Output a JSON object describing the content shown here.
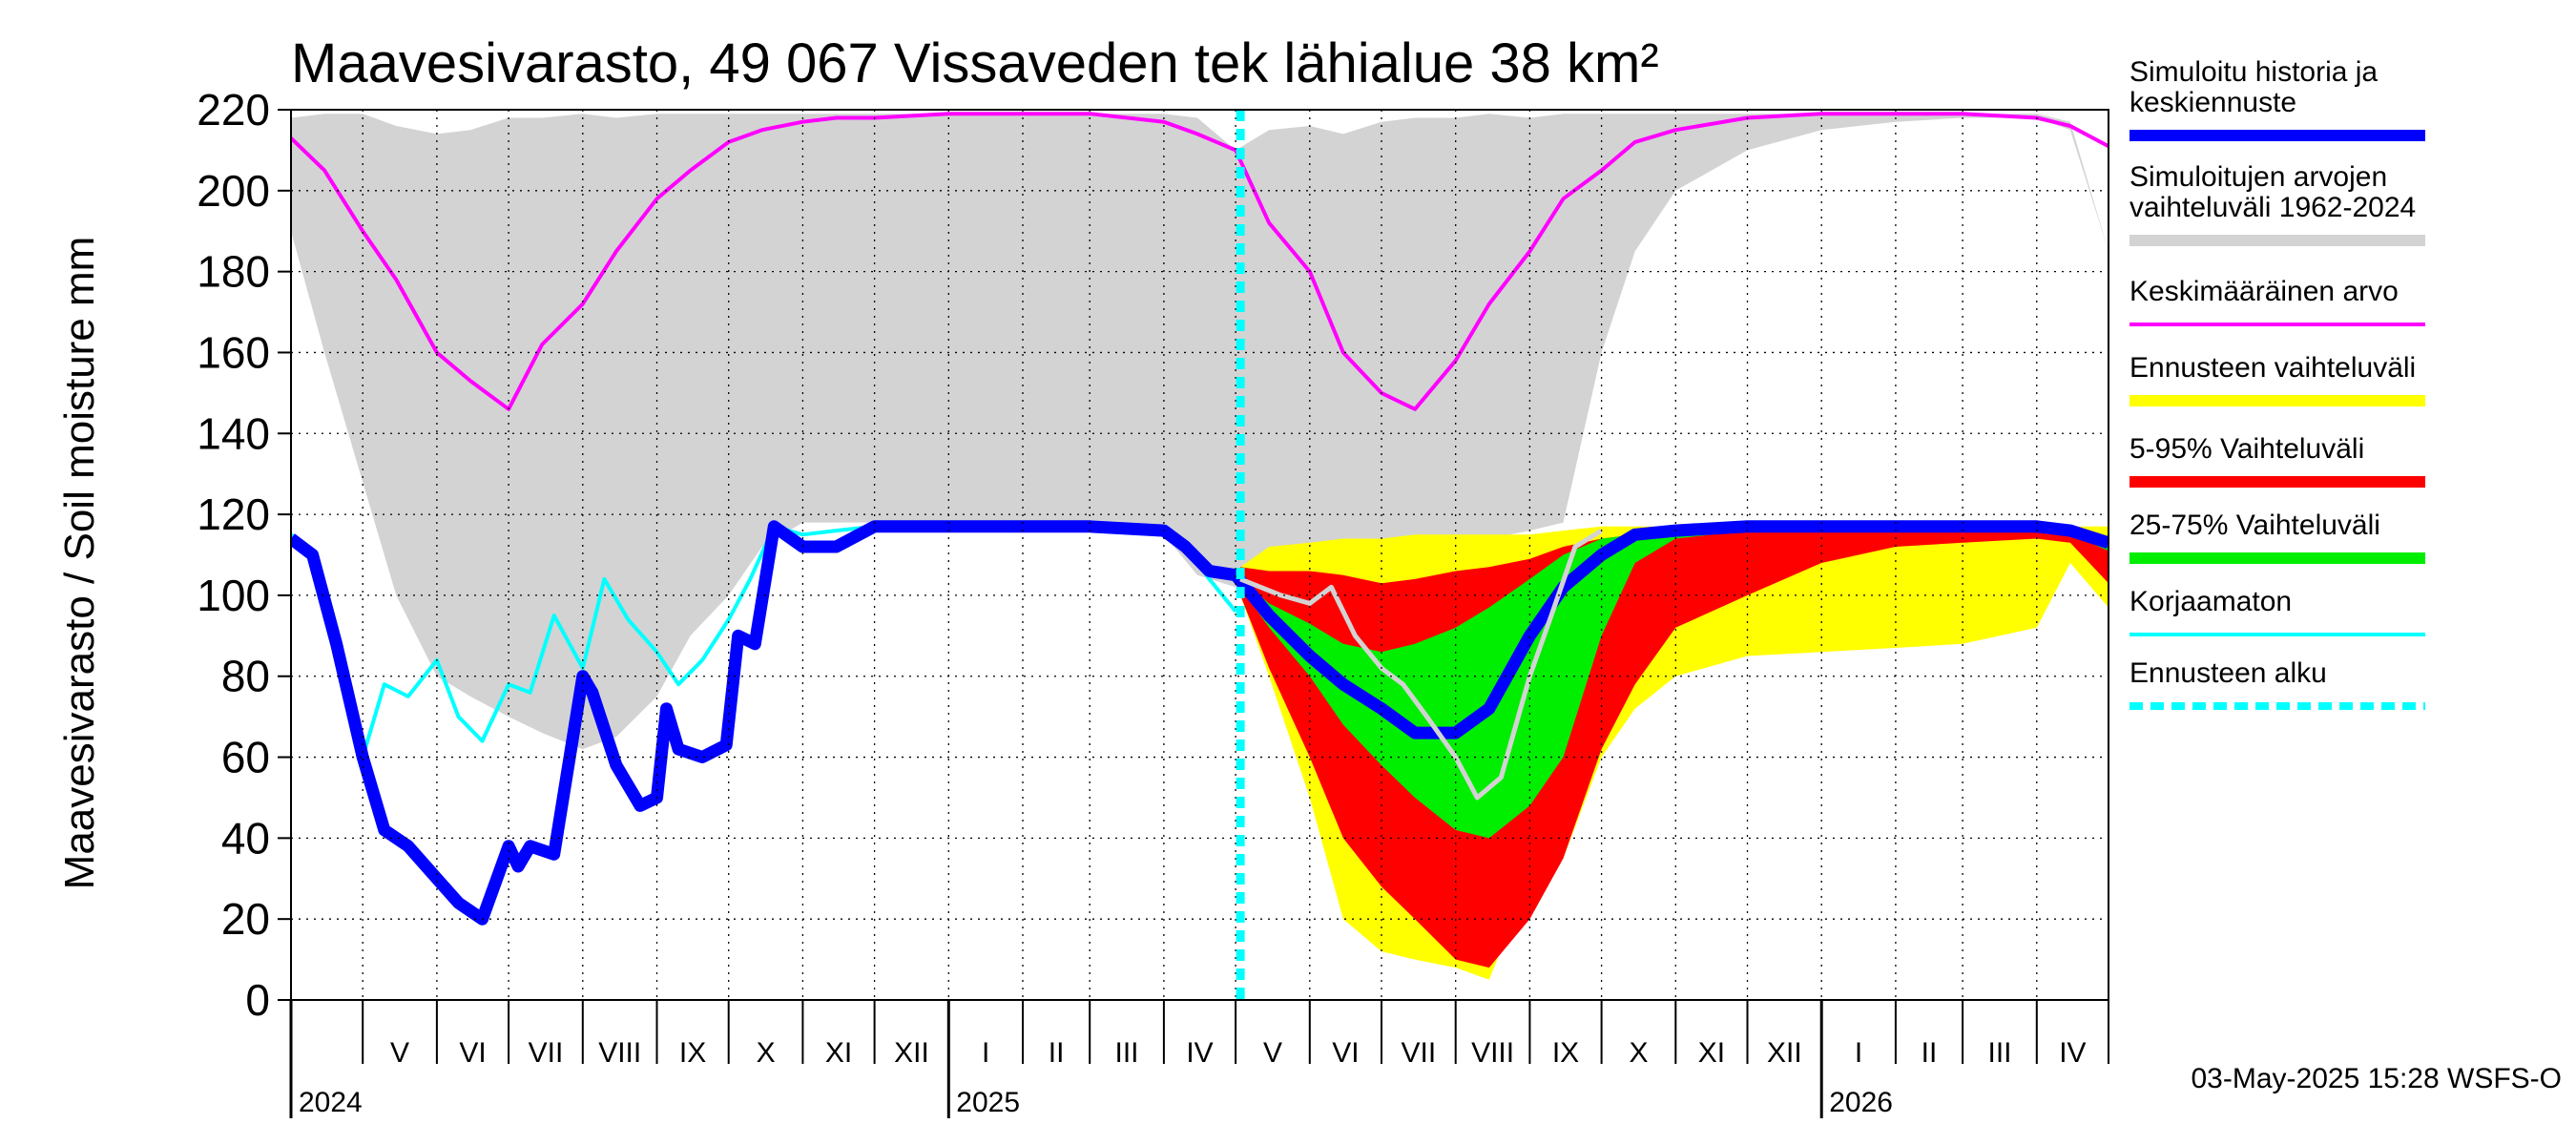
{
  "chart_data": {
    "type": "area",
    "title": "Maavesivarasto, 49 067 Vissaveden tek lähialue 38 km²",
    "ylabel": "Maavesivarasto / Soil moisture   mm",
    "ylim": [
      0,
      220
    ],
    "yticks": [
      "0",
      "20",
      "40",
      "60",
      "80",
      "100",
      "120",
      "140",
      "160",
      "180",
      "200",
      "220"
    ],
    "xlim": [
      "2024-04-01",
      "2026-05-01"
    ],
    "months": [
      {
        "label": "V",
        "date": "2024-05-01"
      },
      {
        "label": "VI",
        "date": "2024-06-01"
      },
      {
        "label": "VII",
        "date": "2024-07-01"
      },
      {
        "label": "VIII",
        "date": "2024-08-01"
      },
      {
        "label": "IX",
        "date": "2024-09-01"
      },
      {
        "label": "X",
        "date": "2024-10-01"
      },
      {
        "label": "XI",
        "date": "2024-11-01"
      },
      {
        "label": "XII",
        "date": "2024-12-01"
      },
      {
        "label": "I",
        "date": "2025-01-01"
      },
      {
        "label": "II",
        "date": "2025-02-01"
      },
      {
        "label": "III",
        "date": "2025-03-01"
      },
      {
        "label": "IV",
        "date": "2025-04-01"
      },
      {
        "label": "V",
        "date": "2025-05-01"
      },
      {
        "label": "VI",
        "date": "2025-06-01"
      },
      {
        "label": "VII",
        "date": "2025-07-01"
      },
      {
        "label": "VIII",
        "date": "2025-08-01"
      },
      {
        "label": "IX",
        "date": "2025-09-01"
      },
      {
        "label": "X",
        "date": "2025-10-01"
      },
      {
        "label": "XI",
        "date": "2025-11-01"
      },
      {
        "label": "XII",
        "date": "2025-12-01"
      },
      {
        "label": "I",
        "date": "2026-01-01"
      },
      {
        "label": "II",
        "date": "2026-02-01"
      },
      {
        "label": "III",
        "date": "2026-03-01"
      },
      {
        "label": "IV",
        "date": "2026-04-01"
      }
    ],
    "years": [
      {
        "label": "2024",
        "date": "2024-04-01"
      },
      {
        "label": "2025",
        "date": "2025-01-01"
      },
      {
        "label": "2026",
        "date": "2026-01-01"
      }
    ],
    "forecast_start": "2025-05-03",
    "series": [
      {
        "name": "Simuloitujen arvojen vaihteluväli 1962-2024",
        "color": "#d3d3d3",
        "style": "band",
        "x": [
          "2024-04-01",
          "2024-04-15",
          "2024-05-01",
          "2024-05-15",
          "2024-06-01",
          "2024-06-15",
          "2024-07-01",
          "2024-07-15",
          "2024-08-01",
          "2024-08-15",
          "2024-09-01",
          "2024-09-15",
          "2024-10-01",
          "2024-10-15",
          "2024-11-01",
          "2024-12-01",
          "2025-01-01",
          "2025-02-01",
          "2025-03-01",
          "2025-04-01",
          "2025-04-15",
          "2025-05-01",
          "2025-05-15",
          "2025-06-01",
          "2025-06-15",
          "2025-07-01",
          "2025-07-15",
          "2025-08-01",
          "2025-08-15",
          "2025-09-01",
          "2025-09-15",
          "2025-10-01",
          "2025-10-15",
          "2025-11-01",
          "2025-12-01",
          "2026-01-01",
          "2026-02-01",
          "2026-03-01",
          "2026-04-01",
          "2026-04-15",
          "2026-05-01"
        ],
        "upper": [
          218,
          219,
          219,
          216,
          214,
          215,
          218,
          218,
          219,
          218,
          219,
          219,
          219,
          219,
          219,
          219,
          219,
          219,
          219,
          219,
          218,
          210,
          215,
          216,
          214,
          217,
          218,
          218,
          219,
          218,
          219,
          219,
          219,
          219,
          219,
          219,
          219,
          219,
          219,
          217,
          185
        ],
        "lower": [
          190,
          160,
          128,
          100,
          80,
          75,
          70,
          66,
          62,
          65,
          75,
          90,
          100,
          112,
          118,
          118,
          118,
          118,
          118,
          115,
          105,
          102,
          105,
          112,
          113,
          113,
          114,
          114,
          114,
          116,
          118,
          160,
          185,
          200,
          210,
          215,
          217,
          218,
          218,
          215,
          185
        ]
      },
      {
        "name": "Ennusteen vaihteluväli",
        "color": "#ffff00",
        "style": "band",
        "x": [
          "2025-05-03",
          "2025-05-15",
          "2025-06-01",
          "2025-06-15",
          "2025-07-01",
          "2025-07-15",
          "2025-08-01",
          "2025-08-15",
          "2025-09-01",
          "2025-09-15",
          "2025-10-01",
          "2025-10-15",
          "2025-11-01",
          "2025-12-01",
          "2026-01-01",
          "2026-02-01",
          "2026-03-01",
          "2026-04-01",
          "2026-04-15",
          "2026-05-01"
        ],
        "upper": [
          107,
          112,
          113,
          114,
          114,
          115,
          115,
          115,
          115,
          116,
          117,
          117,
          117,
          117,
          117,
          117,
          117,
          117,
          117,
          117
        ],
        "lower": [
          100,
          80,
          50,
          20,
          12,
          10,
          8,
          5,
          30,
          35,
          60,
          72,
          80,
          85,
          86,
          87,
          88,
          92,
          108,
          97
        ]
      },
      {
        "name": "5-95% Vaihteluväli",
        "color": "#ff0000",
        "style": "band",
        "x": [
          "2025-05-03",
          "2025-05-15",
          "2025-06-01",
          "2025-06-15",
          "2025-07-01",
          "2025-07-15",
          "2025-08-01",
          "2025-08-15",
          "2025-09-01",
          "2025-09-15",
          "2025-10-01",
          "2025-10-15",
          "2025-11-01",
          "2025-12-01",
          "2026-01-01",
          "2026-02-01",
          "2026-03-01",
          "2026-04-01",
          "2026-04-15",
          "2026-05-01"
        ],
        "upper": [
          107,
          106,
          106,
          105,
          103,
          104,
          106,
          107,
          109,
          112,
          114,
          115,
          116,
          116,
          117,
          117,
          117,
          117,
          116,
          112
        ],
        "lower": [
          100,
          82,
          60,
          40,
          28,
          20,
          10,
          8,
          20,
          35,
          62,
          78,
          92,
          100,
          108,
          112,
          113,
          114,
          113,
          103
        ]
      },
      {
        "name": "25-75% Vaihteluväli",
        "color": "#00ee00",
        "style": "band",
        "x": [
          "2025-05-03",
          "2025-05-15",
          "2025-06-01",
          "2025-06-15",
          "2025-07-01",
          "2025-07-15",
          "2025-08-01",
          "2025-08-15",
          "2025-09-01",
          "2025-09-15",
          "2025-10-01",
          "2025-10-15",
          "2025-11-01",
          "2025-12-01",
          "2026-01-01",
          "2026-02-01",
          "2026-03-01",
          "2026-04-01",
          "2026-04-15",
          "2026-05-01"
        ],
        "upper": [
          104,
          98,
          93,
          88,
          86,
          88,
          92,
          97,
          104,
          110,
          114,
          115,
          116,
          117,
          117,
          117,
          117,
          117,
          116,
          114
        ],
        "lower": [
          102,
          92,
          80,
          68,
          58,
          50,
          42,
          40,
          48,
          60,
          90,
          108,
          114,
          116,
          116,
          116,
          116,
          116,
          115,
          111
        ]
      },
      {
        "name": "Korjaamaton",
        "color": "#00ffff",
        "style": "line",
        "x": [
          "2024-04-01",
          "2024-04-10",
          "2024-04-20",
          "2024-05-01",
          "2024-05-10",
          "2024-05-20",
          "2024-06-01",
          "2024-06-10",
          "2024-06-20",
          "2024-07-01",
          "2024-07-10",
          "2024-07-20",
          "2024-08-01",
          "2024-08-10",
          "2024-08-20",
          "2024-09-01",
          "2024-09-10",
          "2024-09-20",
          "2024-10-01",
          "2024-10-10",
          "2024-10-20",
          "2024-11-01",
          "2024-11-15",
          "2024-12-01",
          "2025-01-01",
          "2025-02-01",
          "2025-03-01",
          "2025-04-01",
          "2025-04-10",
          "2025-04-20",
          "2025-05-01"
        ],
        "y": [
          115,
          110,
          88,
          60,
          78,
          75,
          84,
          70,
          64,
          78,
          76,
          95,
          82,
          104,
          94,
          86,
          78,
          84,
          94,
          104,
          117,
          115,
          116,
          117,
          117,
          117,
          117,
          116,
          112,
          104,
          96
        ]
      },
      {
        "name": "Keskimääräinen arvo",
        "color": "#ff00ff",
        "style": "line",
        "x": [
          "2024-04-01",
          "2024-04-15",
          "2024-05-01",
          "2024-05-15",
          "2024-06-01",
          "2024-06-15",
          "2024-07-01",
          "2024-07-15",
          "2024-08-01",
          "2024-08-15",
          "2024-09-01",
          "2024-09-15",
          "2024-10-01",
          "2024-10-15",
          "2024-11-01",
          "2024-11-15",
          "2024-12-01",
          "2025-01-01",
          "2025-02-01",
          "2025-03-01",
          "2025-04-01",
          "2025-04-15",
          "2025-05-01",
          "2025-05-15",
          "2025-06-01",
          "2025-06-15",
          "2025-07-01",
          "2025-07-15",
          "2025-08-01",
          "2025-08-15",
          "2025-09-01",
          "2025-09-15",
          "2025-10-01",
          "2025-10-15",
          "2025-11-01",
          "2025-12-01",
          "2026-01-01",
          "2026-02-01",
          "2026-03-01",
          "2026-04-01",
          "2026-04-15",
          "2026-05-01"
        ],
        "y": [
          213,
          205,
          190,
          178,
          160,
          153,
          146,
          162,
          172,
          185,
          198,
          205,
          212,
          215,
          217,
          218,
          218,
          219,
          219,
          219,
          217,
          214,
          210,
          192,
          180,
          160,
          150,
          146,
          158,
          172,
          185,
          198,
          205,
          212,
          215,
          218,
          219,
          219,
          219,
          218,
          216,
          211
        ]
      },
      {
        "name": "Simuloitu historia ja keskiennuste",
        "color": "#0000ff",
        "style": "line-thick",
        "x": [
          "2024-04-01",
          "2024-04-10",
          "2024-04-20",
          "2024-05-01",
          "2024-05-10",
          "2024-05-20",
          "2024-06-01",
          "2024-06-10",
          "2024-06-20",
          "2024-07-01",
          "2024-07-05",
          "2024-07-10",
          "2024-07-20",
          "2024-08-01",
          "2024-08-05",
          "2024-08-15",
          "2024-08-25",
          "2024-09-01",
          "2024-09-05",
          "2024-09-10",
          "2024-09-20",
          "2024-09-30",
          "2024-10-05",
          "2024-10-12",
          "2024-10-20",
          "2024-11-01",
          "2024-11-15",
          "2024-12-01",
          "2025-01-01",
          "2025-02-01",
          "2025-03-01",
          "2025-04-01",
          "2025-04-10",
          "2025-04-20",
          "2025-05-01",
          "2025-05-15",
          "2025-06-01",
          "2025-06-15",
          "2025-07-01",
          "2025-07-15",
          "2025-08-01",
          "2025-08-15",
          "2025-09-01",
          "2025-09-15",
          "2025-10-01",
          "2025-10-15",
          "2025-11-01",
          "2025-12-01",
          "2026-01-01",
          "2026-02-01",
          "2026-03-01",
          "2026-04-01",
          "2026-04-15",
          "2026-05-01"
        ],
        "y": [
          114,
          110,
          88,
          60,
          42,
          38,
          30,
          24,
          20,
          38,
          33,
          38,
          36,
          80,
          76,
          58,
          48,
          50,
          72,
          62,
          60,
          63,
          90,
          88,
          117,
          112,
          112,
          117,
          117,
          117,
          117,
          116,
          112,
          106,
          105,
          95,
          85,
          78,
          72,
          66,
          66,
          72,
          90,
          102,
          110,
          115,
          116,
          117,
          117,
          117,
          117,
          117,
          116,
          113
        ]
      },
      {
        "name": "",
        "color": "#d3d3d3",
        "style": "line-thin",
        "x": [
          "2025-05-03",
          "2025-05-20",
          "2025-06-01",
          "2025-06-10",
          "2025-06-20",
          "2025-07-01",
          "2025-07-10",
          "2025-07-20",
          "2025-08-01",
          "2025-08-10",
          "2025-08-20",
          "2025-09-01",
          "2025-09-10",
          "2025-09-20",
          "2025-10-01"
        ],
        "y": [
          104,
          100,
          98,
          102,
          90,
          82,
          78,
          70,
          60,
          50,
          55,
          80,
          95,
          112,
          116
        ]
      }
    ]
  },
  "title": "Maavesivarasto, 49 067 Vissaveden tek lähialue 38 km²",
  "ylabel": "Maavesivarasto / Soil moisture   mm",
  "legend": [
    {
      "lines": [
        "Simuloitu historia ja",
        "keskiennuste"
      ],
      "color": "#0000ff",
      "style": "thick"
    },
    {
      "lines": [
        "Simuloitujen arvojen",
        "vaihteluväli 1962-2024"
      ],
      "color": "#d3d3d3",
      "style": "thick"
    },
    {
      "lines": [
        "Keskimääräinen arvo"
      ],
      "color": "#ff00ff",
      "style": "thin"
    },
    {
      "lines": [
        "Ennusteen vaihteluväli"
      ],
      "color": "#ffff00",
      "style": "thick"
    },
    {
      "lines": [
        "5-95% Vaihteluväli"
      ],
      "color": "#ff0000",
      "style": "thick"
    },
    {
      "lines": [
        "25-75% Vaihteluväli"
      ],
      "color": "#00ee00",
      "style": "thick"
    },
    {
      "lines": [
        "Korjaamaton"
      ],
      "color": "#00ffff",
      "style": "thin"
    },
    {
      "lines": [
        "Ennusteen alku"
      ],
      "color": "#00ffff",
      "style": "dashed"
    }
  ],
  "footer": "03-May-2025 15:28 WSFS-O"
}
